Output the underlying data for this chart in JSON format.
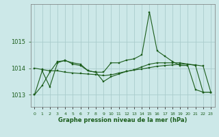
{
  "title": "Graphe pression niveau de la mer (hPa)",
  "background_color": "#cce8e8",
  "grid_color": "#aacccc",
  "line_color": "#1a5c1a",
  "marker_color": "#1a5c1a",
  "xlim": [
    -0.5,
    23.5
  ],
  "ylim": [
    1012.55,
    1016.4
  ],
  "yticks": [
    1013,
    1014,
    1015
  ],
  "xticks": [
    0,
    1,
    2,
    3,
    4,
    5,
    6,
    7,
    8,
    9,
    10,
    11,
    12,
    13,
    14,
    15,
    16,
    17,
    18,
    19,
    20,
    21,
    22,
    23
  ],
  "series": [
    [
      1013.0,
      1013.9,
      1013.3,
      1014.2,
      1014.3,
      1014.15,
      1014.1,
      1013.9,
      1013.85,
      1013.85,
      1014.2,
      1014.2,
      1014.3,
      1014.35,
      1014.5,
      1016.1,
      1014.65,
      1014.45,
      1014.25,
      1014.1,
      1014.1,
      1013.2,
      1013.1,
      1013.1
    ],
    [
      1014.0,
      1013.95,
      1013.9,
      1013.9,
      1013.85,
      1013.82,
      1013.8,
      1013.78,
      1013.76,
      1013.72,
      1013.75,
      1013.82,
      1013.88,
      1013.93,
      1013.97,
      1014.02,
      1014.07,
      1014.1,
      1014.12,
      1014.15,
      1014.15,
      1014.12,
      1014.08,
      1013.1
    ],
    [
      1013.0,
      1013.35,
      1013.85,
      1014.25,
      1014.28,
      1014.2,
      1014.15,
      1013.9,
      1013.85,
      1013.5,
      1013.68,
      1013.78,
      1013.88,
      1013.94,
      1014.05,
      1014.15,
      1014.2,
      1014.2,
      1014.2,
      1014.2,
      1014.15,
      1014.1,
      1013.1,
      1013.1
    ]
  ]
}
